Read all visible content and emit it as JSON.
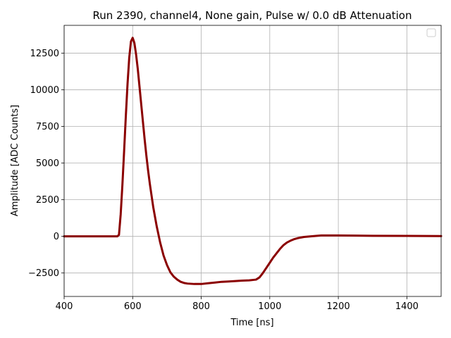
{
  "chart_data": {
    "type": "line",
    "title": "Run 2390, channel4, None gain, Pulse w/ 0.0 dB Attenuation",
    "xlabel": "Time [ns]",
    "ylabel": "Amplitude [ADC Counts]",
    "xlim": [
      400,
      1500
    ],
    "ylim": [
      -4100,
      14400
    ],
    "xticks": [
      400,
      600,
      800,
      1000,
      1200,
      1400
    ],
    "yticks": [
      -2500,
      0,
      2500,
      5000,
      7500,
      10000,
      12500
    ],
    "grid": true,
    "legend": "top-right",
    "line_color": "#8b0000",
    "series": [
      {
        "x": [
          400,
          450,
          500,
          540,
          555,
          560,
          565,
          570,
          575,
          580,
          585,
          590,
          595,
          600,
          605,
          610,
          615,
          620,
          625,
          630,
          635,
          640,
          645,
          650,
          655,
          660,
          670,
          680,
          690,
          700,
          710,
          720,
          730,
          740,
          750,
          760,
          780,
          800,
          820,
          840,
          860,
          880,
          900,
          920,
          940,
          960,
          970,
          980,
          990,
          1000,
          1010,
          1020,
          1030,
          1040,
          1050,
          1060,
          1070,
          1080,
          1090,
          1100,
          1120,
          1150,
          1200,
          1300,
          1400,
          1500
        ],
        "values": [
          0,
          0,
          0,
          0,
          0,
          100,
          1500,
          3500,
          5800,
          8200,
          10400,
          12200,
          13300,
          13550,
          13200,
          12400,
          11400,
          10200,
          9000,
          7800,
          6600,
          5500,
          4500,
          3600,
          2800,
          2000,
          700,
          -400,
          -1300,
          -1950,
          -2450,
          -2750,
          -2950,
          -3100,
          -3180,
          -3220,
          -3250,
          -3250,
          -3200,
          -3150,
          -3100,
          -3080,
          -3050,
          -3020,
          -3000,
          -2950,
          -2800,
          -2500,
          -2150,
          -1800,
          -1450,
          -1150,
          -850,
          -600,
          -420,
          -300,
          -200,
          -130,
          -80,
          -40,
          0,
          60,
          60,
          40,
          30,
          20
        ]
      }
    ]
  }
}
